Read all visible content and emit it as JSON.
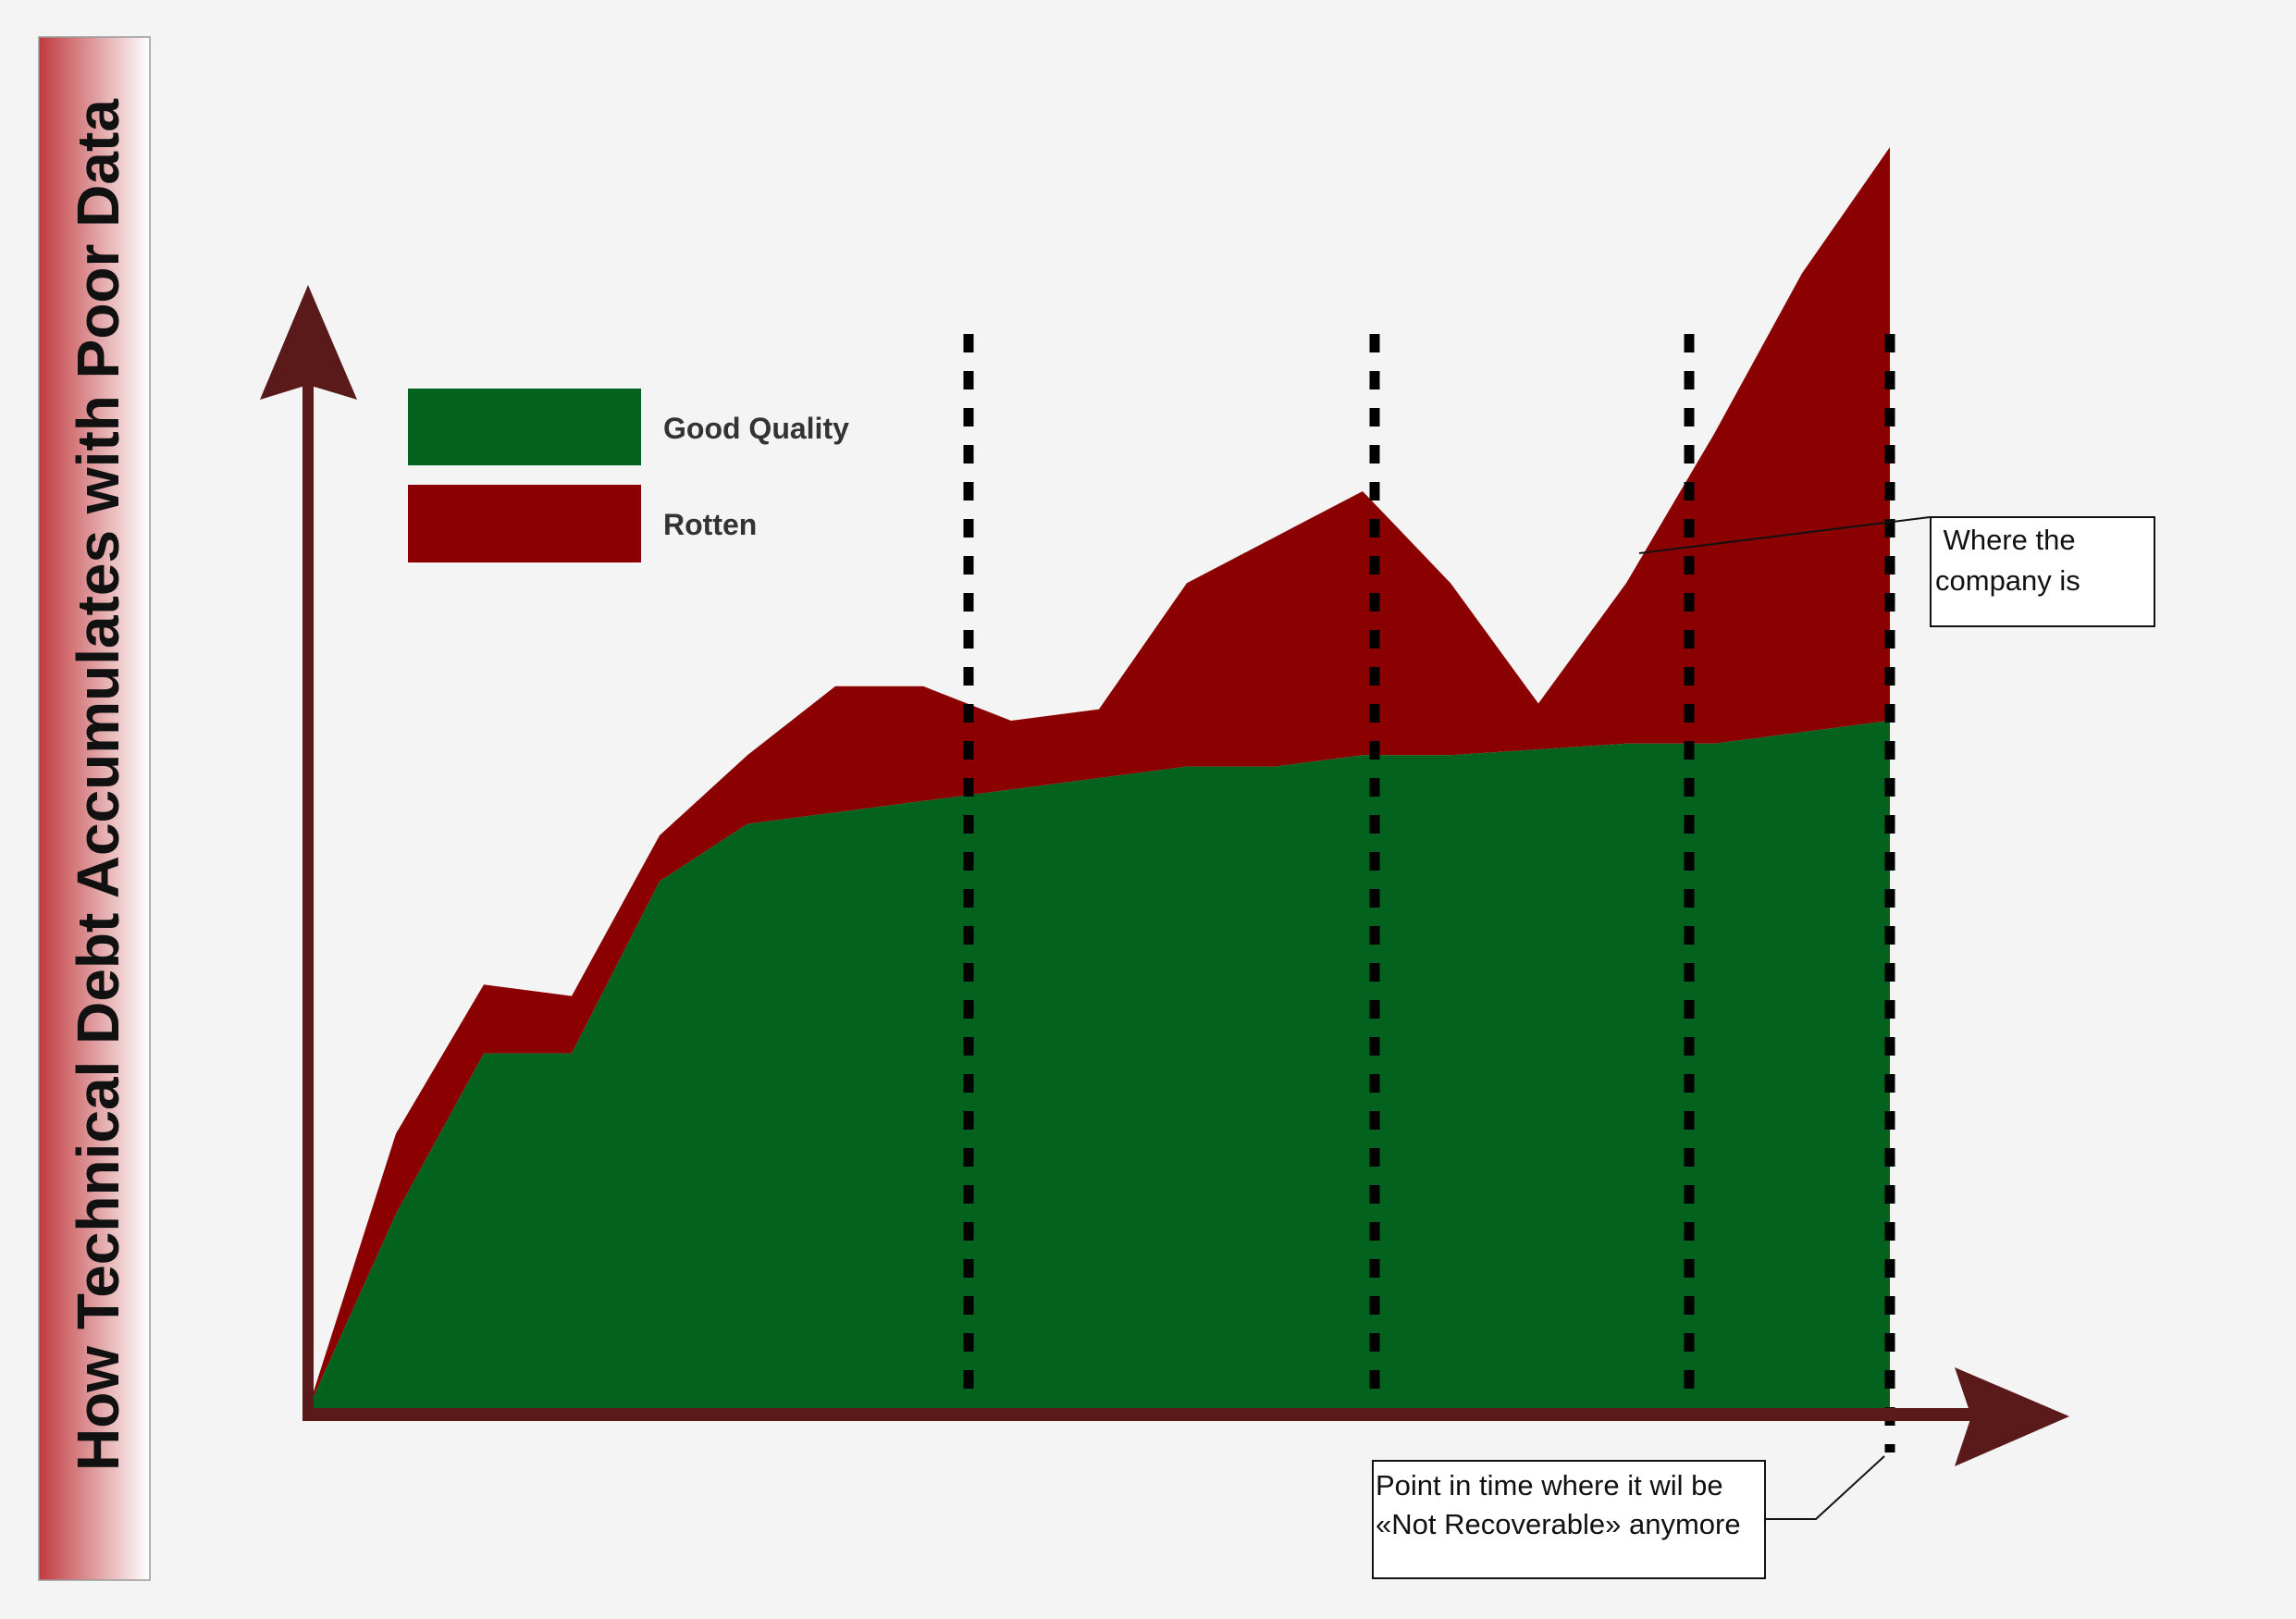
{
  "title": "How Technical Debt Accumulates with Poor Data",
  "legend": [
    {
      "label": "Good Quality",
      "color": "#02621e"
    },
    {
      "label": "Rotten",
      "color": "#8b0000"
    }
  ],
  "callouts": {
    "company": {
      "lines": [
        " Where the",
        "company is"
      ]
    },
    "not_recoverable": {
      "lines": [
        "Point in time where it wil be",
        "«Not Recoverable» anymore"
      ]
    }
  },
  "colors": {
    "axis": "#5a1a1a",
    "title_band": "#c03a3e",
    "background": "#f4f4f4",
    "dashed_lines": "#000000"
  },
  "chart_data": {
    "type": "area",
    "stacked": true,
    "x": [
      0,
      1,
      2,
      3,
      4,
      5,
      6,
      7,
      8,
      9,
      10,
      11,
      12,
      13,
      14,
      15,
      16,
      17,
      18
    ],
    "series": [
      {
        "name": "Good Quality",
        "values": [
          0,
          17,
          31,
          31,
          46,
          51,
          52,
          53,
          54,
          55,
          56,
          56,
          57,
          57,
          57.5,
          58,
          58,
          59,
          60
        ]
      },
      {
        "name": "Rotten",
        "values": [
          0,
          7,
          6,
          5,
          4,
          6,
          11,
          10,
          6,
          6,
          16,
          20,
          23,
          15,
          4,
          14,
          27,
          40,
          50
        ]
      }
    ],
    "markers": [
      1.4,
      2.35,
      3.1,
      3.55
    ],
    "grid": false,
    "legend_position": "top-left"
  }
}
